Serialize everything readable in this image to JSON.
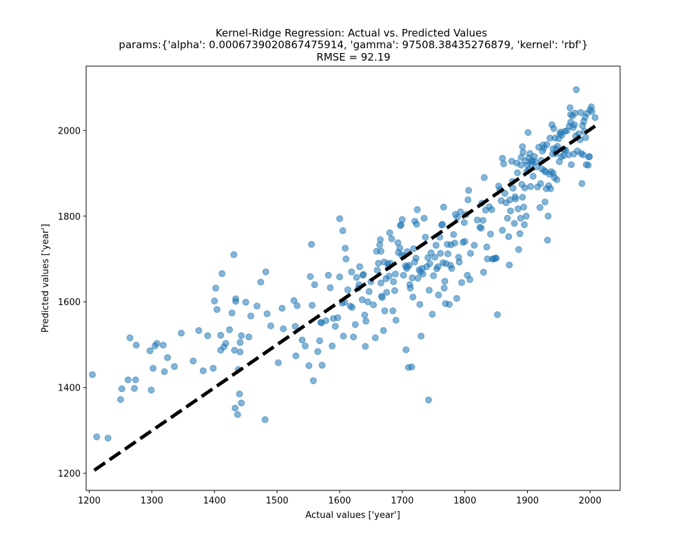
{
  "chart_data": {
    "type": "scatter",
    "title_lines": [
      "Kernel-Ridge Regression: Actual vs. Predicted Values",
      "params:{'alpha': 0.0006739020867475914, 'gamma': 97508.38435276879, 'kernel': 'rbf'}",
      "RMSE = 92.19"
    ],
    "xlabel": "Actual values ['year']",
    "ylabel": "Predicted values ['year']",
    "xlim": [
      1195,
      2048
    ],
    "ylim": [
      1160,
      2150
    ],
    "x_ticks": [
      1200,
      1300,
      1400,
      1500,
      1600,
      1700,
      1800,
      1900,
      2000
    ],
    "y_ticks": [
      1200,
      1400,
      1600,
      1800,
      2000
    ],
    "point_color": "#1f77b4",
    "point_alpha": 0.55,
    "reference_line": {
      "from": [
        1208,
        1207
      ],
      "to": [
        2008,
        2010
      ],
      "style": "dashed",
      "color": "#000000"
    },
    "grid": false,
    "points": [
      [
        1205,
        1430
      ],
      [
        1212,
        1285
      ],
      [
        1230,
        1282
      ],
      [
        1250,
        1372
      ],
      [
        1252,
        1397
      ],
      [
        1262,
        1418
      ],
      [
        1265,
        1516
      ],
      [
        1272,
        1398
      ],
      [
        1274,
        1418
      ],
      [
        1275,
        1499
      ],
      [
        1297,
        1486
      ],
      [
        1299,
        1394
      ],
      [
        1302,
        1445
      ],
      [
        1305,
        1497
      ],
      [
        1308,
        1503
      ],
      [
        1318,
        1499
      ],
      [
        1320,
        1437
      ],
      [
        1325,
        1470
      ],
      [
        1336,
        1449
      ],
      [
        1347,
        1527
      ],
      [
        1366,
        1462
      ],
      [
        1375,
        1533
      ],
      [
        1382,
        1439
      ],
      [
        1389,
        1521
      ],
      [
        1398,
        1445
      ],
      [
        1400,
        1602
      ],
      [
        1402,
        1632
      ],
      [
        1404,
        1582
      ],
      [
        1410,
        1487
      ],
      [
        1410,
        1522
      ],
      [
        1412,
        1666
      ],
      [
        1415,
        1495
      ],
      [
        1418,
        1503
      ],
      [
        1424,
        1535
      ],
      [
        1428,
        1574
      ],
      [
        1431,
        1710
      ],
      [
        1432,
        1487
      ],
      [
        1433,
        1352
      ],
      [
        1434,
        1601
      ],
      [
        1434,
        1607
      ],
      [
        1437,
        1337
      ],
      [
        1438,
        1442
      ],
      [
        1440,
        1385
      ],
      [
        1441,
        1505
      ],
      [
        1441,
        1483
      ],
      [
        1443,
        1364
      ],
      [
        1443,
        1521
      ],
      [
        1450,
        1599
      ],
      [
        1455,
        1518
      ],
      [
        1458,
        1567
      ],
      [
        1468,
        1590
      ],
      [
        1474,
        1646
      ],
      [
        1481,
        1325
      ],
      [
        1482,
        1670
      ],
      [
        1484,
        1572
      ],
      [
        1490,
        1544
      ],
      [
        1502,
        1458
      ],
      [
        1508,
        1585
      ],
      [
        1510,
        1537
      ],
      [
        1527,
        1603
      ],
      [
        1529,
        1543
      ],
      [
        1530,
        1474
      ],
      [
        1532,
        1591
      ],
      [
        1540,
        1511
      ],
      [
        1545,
        1497
      ],
      [
        1551,
        1451
      ],
      [
        1553,
        1659
      ],
      [
        1555,
        1734
      ],
      [
        1556,
        1592
      ],
      [
        1558,
        1416
      ],
      [
        1560,
        1640
      ],
      [
        1565,
        1484
      ],
      [
        1568,
        1509
      ],
      [
        1570,
        1552
      ],
      [
        1571,
        1551
      ],
      [
        1572,
        1452
      ],
      [
        1578,
        1556
      ],
      [
        1582,
        1662
      ],
      [
        1585,
        1633
      ],
      [
        1588,
        1497
      ],
      [
        1590,
        1561
      ],
      [
        1593,
        1543
      ],
      [
        1597,
        1563
      ],
      [
        1600,
        1794
      ],
      [
        1600,
        1658
      ],
      [
        1604,
        1597
      ],
      [
        1605,
        1766
      ],
      [
        1606,
        1520
      ],
      [
        1608,
        1599
      ],
      [
        1609,
        1725
      ],
      [
        1610,
        1700
      ],
      [
        1613,
        1628
      ],
      [
        1617,
        1590
      ],
      [
        1619,
        1670
      ],
      [
        1620,
        1587
      ],
      [
        1622,
        1518
      ],
      [
        1625,
        1547
      ],
      [
        1627,
        1657
      ],
      [
        1630,
        1632
      ],
      [
        1631,
        1640
      ],
      [
        1632,
        1682
      ],
      [
        1636,
        1605
      ],
      [
        1637,
        1662
      ],
      [
        1638,
        1664
      ],
      [
        1640,
        1569
      ],
      [
        1641,
        1496
      ],
      [
        1642,
        1555
      ],
      [
        1645,
        1600
      ],
      [
        1647,
        1624
      ],
      [
        1650,
        1647
      ],
      [
        1654,
        1593
      ],
      [
        1657,
        1516
      ],
      [
        1659,
        1718
      ],
      [
        1660,
        1674
      ],
      [
        1662,
        1690
      ],
      [
        1664,
        1733
      ],
      [
        1665,
        1745
      ],
      [
        1666,
        1718
      ],
      [
        1666,
        1644
      ],
      [
        1667,
        1613
      ],
      [
        1668,
        1610
      ],
      [
        1670,
        1533
      ],
      [
        1671,
        1693
      ],
      [
        1672,
        1579
      ],
      [
        1674,
        1654
      ],
      [
        1675,
        1622
      ],
      [
        1677,
        1689
      ],
      [
        1678,
        1682
      ],
      [
        1679,
        1660
      ],
      [
        1680,
        1761
      ],
      [
        1681,
        1690
      ],
      [
        1683,
        1747
      ],
      [
        1685,
        1579
      ],
      [
        1686,
        1647
      ],
      [
        1688,
        1626
      ],
      [
        1689,
        1665
      ],
      [
        1690,
        1557
      ],
      [
        1693,
        1738
      ],
      [
        1694,
        1715
      ],
      [
        1696,
        1725
      ],
      [
        1697,
        1778
      ],
      [
        1698,
        1780
      ],
      [
        1699,
        1709
      ],
      [
        1700,
        1792
      ],
      [
        1702,
        1662
      ],
      [
        1703,
        1707
      ],
      [
        1705,
        1684
      ],
      [
        1706,
        1488
      ],
      [
        1707,
        1678
      ],
      [
        1708,
        1717
      ],
      [
        1708,
        1682
      ],
      [
        1710,
        1447
      ],
      [
        1711,
        1685
      ],
      [
        1712,
        1640
      ],
      [
        1713,
        1632
      ],
      [
        1715,
        1448
      ],
      [
        1716,
        1656
      ],
      [
        1717,
        1611
      ],
      [
        1718,
        1724
      ],
      [
        1720,
        1693
      ],
      [
        1720,
        1788
      ],
      [
        1722,
        1702
      ],
      [
        1723,
        1781
      ],
      [
        1724,
        1815
      ],
      [
        1725,
        1655
      ],
      [
        1727,
        1675
      ],
      [
        1728,
        1594
      ],
      [
        1729,
        1670
      ],
      [
        1730,
        1520
      ],
      [
        1732,
        1678
      ],
      [
        1733,
        1665
      ],
      [
        1735,
        1795
      ],
      [
        1737,
        1751
      ],
      [
        1739,
        1682
      ],
      [
        1741,
        1703
      ],
      [
        1742,
        1371
      ],
      [
        1743,
        1627
      ],
      [
        1744,
        1689
      ],
      [
        1746,
        1714
      ],
      [
        1748,
        1571
      ],
      [
        1750,
        1661
      ],
      [
        1752,
        1704
      ],
      [
        1754,
        1732
      ],
      [
        1755,
        1677
      ],
      [
        1757,
        1682
      ],
      [
        1758,
        1616
      ],
      [
        1760,
        1751
      ],
      [
        1761,
        1713
      ],
      [
        1763,
        1779
      ],
      [
        1764,
        1781
      ],
      [
        1765,
        1691
      ],
      [
        1766,
        1821
      ],
      [
        1767,
        1632
      ],
      [
        1768,
        1648
      ],
      [
        1769,
        1596
      ],
      [
        1770,
        1689
      ],
      [
        1772,
        1734
      ],
      [
        1773,
        1712
      ],
      [
        1775,
        1594
      ],
      [
        1777,
        1685
      ],
      [
        1778,
        1733
      ],
      [
        1779,
        1678
      ],
      [
        1782,
        1757
      ],
      [
        1784,
        1737
      ],
      [
        1785,
        1804
      ],
      [
        1787,
        1608
      ],
      [
        1788,
        1797
      ],
      [
        1790,
        1704
      ],
      [
        1791,
        1693
      ],
      [
        1793,
        1810
      ],
      [
        1795,
        1645
      ],
      [
        1797,
        1739
      ],
      [
        1799,
        1785
      ],
      [
        1800,
        1741
      ],
      [
        1802,
        1804
      ],
      [
        1804,
        1662
      ],
      [
        1805,
        1838
      ],
      [
        1806,
        1860
      ],
      [
        1808,
        1652
      ],
      [
        1809,
        1713
      ],
      [
        1815,
        1732
      ],
      [
        1820,
        1791
      ],
      [
        1824,
        1774
      ],
      [
        1826,
        1772
      ],
      [
        1827,
        1830
      ],
      [
        1829,
        1790
      ],
      [
        1830,
        1669
      ],
      [
        1831,
        1890
      ],
      [
        1833,
        1814
      ],
      [
        1835,
        1728
      ],
      [
        1836,
        1700
      ],
      [
        1839,
        1822
      ],
      [
        1841,
        1758
      ],
      [
        1843,
        1815
      ],
      [
        1844,
        1700
      ],
      [
        1846,
        1700
      ],
      [
        1849,
        1702
      ],
      [
        1850,
        1702
      ],
      [
        1852,
        1570
      ],
      [
        1854,
        1870
      ],
      [
        1856,
        1862
      ],
      [
        1858,
        1836
      ],
      [
        1860,
        1767
      ],
      [
        1860,
        1935
      ],
      [
        1862,
        1922
      ],
      [
        1864,
        1853
      ],
      [
        1866,
        1831
      ],
      [
        1868,
        1795
      ],
      [
        1870,
        1752
      ],
      [
        1871,
        1686
      ],
      [
        1872,
        1838
      ],
      [
        1873,
        1812
      ],
      [
        1875,
        1928
      ],
      [
        1876,
        1881
      ],
      [
        1877,
        1865
      ],
      [
        1879,
        1783
      ],
      [
        1880,
        1845
      ],
      [
        1881,
        1840
      ],
      [
        1883,
        1924
      ],
      [
        1884,
        1901
      ],
      [
        1885,
        1817
      ],
      [
        1886,
        1722
      ],
      [
        1888,
        1759
      ],
      [
        1889,
        1795
      ],
      [
        1890,
        1919
      ],
      [
        1890,
        1937
      ],
      [
        1891,
        1874
      ],
      [
        1892,
        1962
      ],
      [
        1892,
        1844
      ],
      [
        1893,
        1949
      ],
      [
        1894,
        1821
      ],
      [
        1895,
        1780
      ],
      [
        1896,
        1866
      ],
      [
        1897,
        1928
      ],
      [
        1898,
        1800
      ],
      [
        1899,
        1904
      ],
      [
        1900,
        1919
      ],
      [
        1901,
        1995
      ],
      [
        1902,
        1936
      ],
      [
        1902,
        1908
      ],
      [
        1904,
        1946
      ],
      [
        1905,
        1869
      ],
      [
        1906,
        1921
      ],
      [
        1907,
        1930
      ],
      [
        1908,
        1928
      ],
      [
        1909,
        1893
      ],
      [
        1911,
        1939
      ],
      [
        1912,
        1927
      ],
      [
        1914,
        1915
      ],
      [
        1916,
        1868
      ],
      [
        1918,
        1961
      ],
      [
        1920,
        1820
      ],
      [
        1921,
        1876
      ],
      [
        1922,
        1930
      ],
      [
        1923,
        1910
      ],
      [
        1924,
        1952
      ],
      [
        1925,
        1966
      ],
      [
        1926,
        1959
      ],
      [
        1927,
        1906
      ],
      [
        1928,
        1833
      ],
      [
        1929,
        1903
      ],
      [
        1930,
        1864
      ],
      [
        1931,
        1967
      ],
      [
        1932,
        1744
      ],
      [
        1933,
        1800
      ],
      [
        1934,
        1871
      ],
      [
        1935,
        1898
      ],
      [
        1936,
        1982
      ],
      [
        1937,
        1864
      ],
      [
        1938,
        1904
      ],
      [
        1939,
        2013
      ],
      [
        1940,
        1945
      ],
      [
        1941,
        1900
      ],
      [
        1941,
        1957
      ],
      [
        1942,
        2004
      ],
      [
        1943,
        1890
      ],
      [
        1944,
        1982
      ],
      [
        1945,
        1946
      ],
      [
        1946,
        1957
      ],
      [
        1947,
        1885
      ],
      [
        1948,
        1963
      ],
      [
        1950,
        1981
      ],
      [
        1951,
        1927
      ],
      [
        1952,
        1992
      ],
      [
        1953,
        1996
      ],
      [
        1954,
        1939
      ],
      [
        1955,
        1989
      ],
      [
        1957,
        1956
      ],
      [
        1958,
        1941
      ],
      [
        1959,
        1955
      ],
      [
        1960,
        1998
      ],
      [
        1961,
        1954
      ],
      [
        1963,
        1999
      ],
      [
        1966,
        1943
      ],
      [
        1967,
        2010
      ],
      [
        1968,
        2053
      ],
      [
        1969,
        2019
      ],
      [
        1969,
        2037
      ],
      [
        1970,
        1920
      ],
      [
        1972,
        2034
      ],
      [
        1973,
        2007
      ],
      [
        1974,
        1945
      ],
      [
        1975,
        2013
      ],
      [
        1976,
        2040
      ],
      [
        1977,
        1987
      ],
      [
        1978,
        2095
      ],
      [
        1980,
        1952
      ],
      [
        1982,
        1992
      ],
      [
        1984,
        1978
      ],
      [
        1985,
        2042
      ],
      [
        1986,
        1946
      ],
      [
        1987,
        1876
      ],
      [
        1988,
        2011
      ],
      [
        1989,
        1943
      ],
      [
        1990,
        2021
      ],
      [
        1991,
        1998
      ],
      [
        1992,
        2031
      ],
      [
        1993,
        1983
      ],
      [
        1994,
        1920
      ],
      [
        1995,
        2040
      ],
      [
        1997,
        1919
      ],
      [
        1998,
        1938
      ],
      [
        1999,
        1939
      ],
      [
        2000,
        2048
      ],
      [
        2002,
        2055
      ],
      [
        2003,
        2044
      ],
      [
        2008,
        2030
      ]
    ]
  }
}
